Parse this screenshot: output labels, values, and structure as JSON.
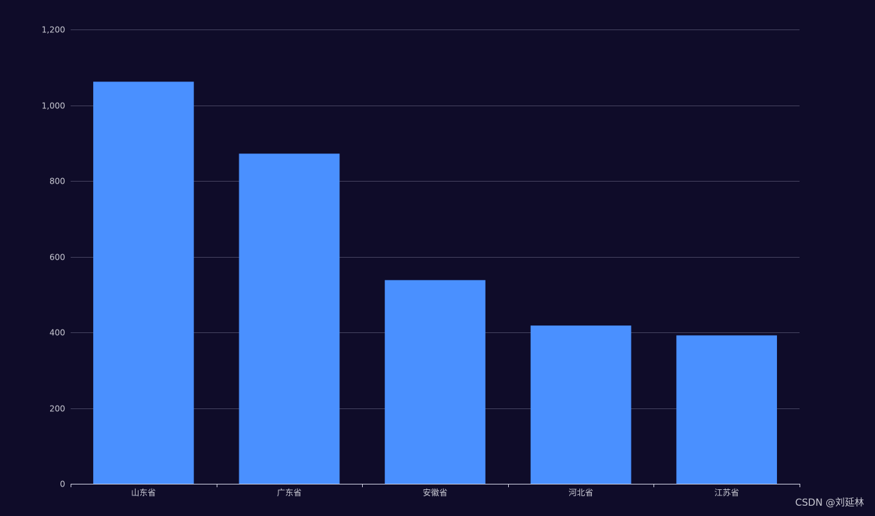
{
  "chart_data": {
    "type": "bar",
    "title": "",
    "xlabel": "",
    "ylabel": "",
    "categories": [
      "山东省",
      "广东省",
      "安徽省",
      "河北省",
      "江苏省"
    ],
    "values": [
      1062,
      872,
      538,
      418,
      392
    ],
    "ylim": [
      0,
      1200
    ],
    "yticks": [
      0,
      200,
      400,
      600,
      800,
      1000,
      1200
    ],
    "ytick_labels": [
      "0",
      "200",
      "400",
      "600",
      "800",
      "1,000",
      "1,200"
    ],
    "grid": true,
    "legend": "none"
  },
  "colors": {
    "background": "#0f0c29",
    "bar": "#4a90ff",
    "grid": "#44425f",
    "axis": "#cfcfe0",
    "tick_label": "#c7c7d1"
  },
  "watermark": "CSDN @刘延林"
}
